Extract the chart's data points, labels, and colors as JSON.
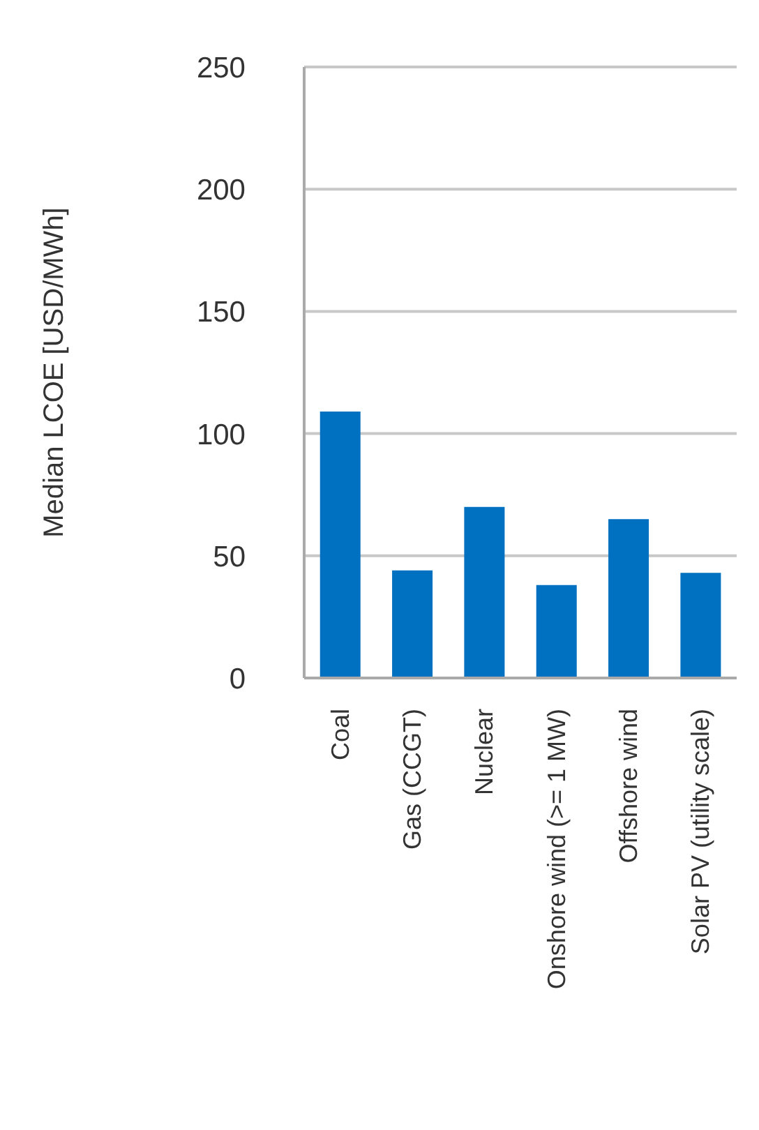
{
  "chart_data": {
    "type": "bar",
    "ylabel": "Median LCOE [USD/MWh]",
    "categories": [
      "Coal",
      "Gas (CCGT)",
      "Nuclear",
      "Onshore wind (>= 1 MW)",
      "Offshore wind",
      "Solar PV (utility scale)"
    ],
    "values": [
      109,
      44,
      70,
      38,
      65,
      43
    ],
    "color": "#0070c0",
    "ylim": [
      0,
      250
    ],
    "yticks": [
      0,
      50,
      100,
      150,
      200,
      250
    ],
    "grid": "y"
  }
}
